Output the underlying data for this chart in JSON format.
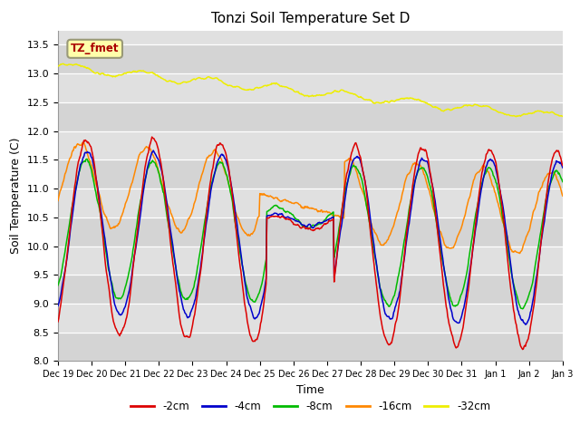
{
  "title": "Tonzi Soil Temperature Set D",
  "xlabel": "Time",
  "ylabel": "Soil Temperature (C)",
  "ylim": [
    8.0,
    13.75
  ],
  "yticks": [
    8.0,
    8.5,
    9.0,
    9.5,
    10.0,
    10.5,
    11.0,
    11.5,
    12.0,
    12.5,
    13.0,
    13.5
  ],
  "legend_labels": [
    "-2cm",
    "-4cm",
    "-8cm",
    "-16cm",
    "-32cm"
  ],
  "legend_colors": [
    "#dd0000",
    "#0000cc",
    "#00bb00",
    "#ff8800",
    "#eeee00"
  ],
  "annotation_text": "TZ_fmet",
  "annotation_color": "#aa0000",
  "annotation_bg": "#ffffaa",
  "title_fontsize": 11,
  "tick_fontsize": 7,
  "axis_label_fontsize": 9
}
